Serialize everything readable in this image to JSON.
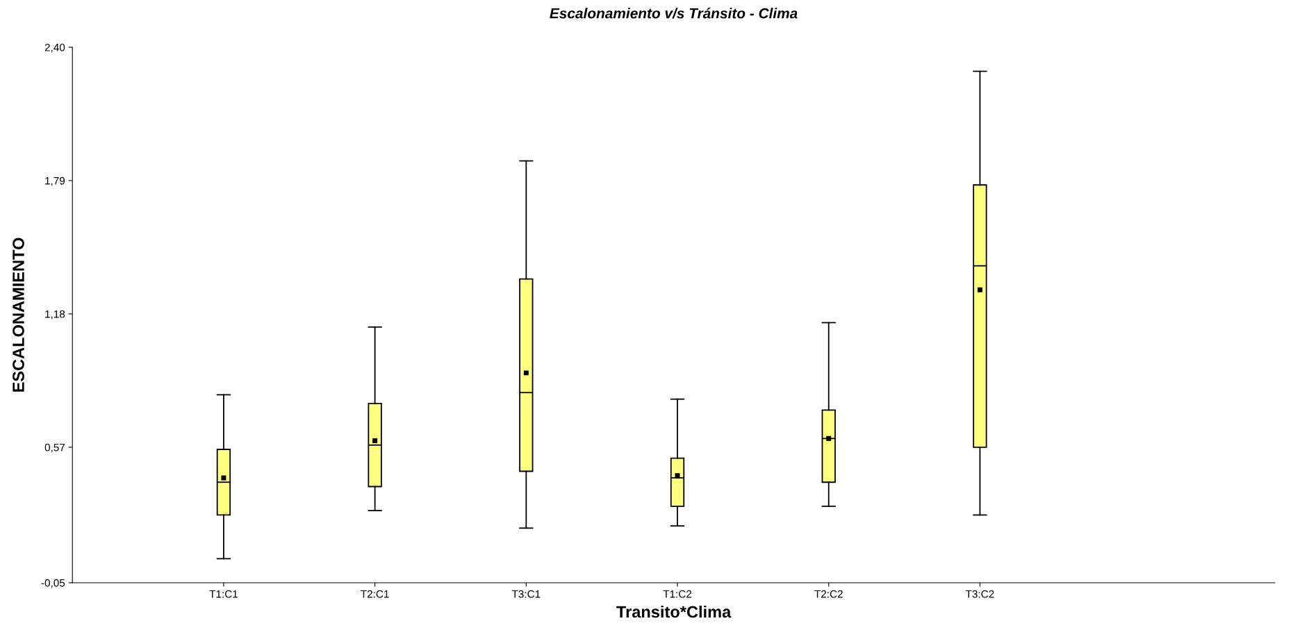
{
  "chart_data": {
    "type": "box",
    "title": "Escalonamiento v/s Tránsito - Clima",
    "xlabel": "Transito*Clima",
    "ylabel": "ESCALONAMIENTO",
    "categories": [
      "T1:C1",
      "T2:C1",
      "T3:C1",
      "T1:C2",
      "T2:C2",
      "T3:C2"
    ],
    "color": "#ffff80",
    "grid": false,
    "marker": "square",
    "ylim": [
      -0.05,
      2.4
    ],
    "yticks": [
      {
        "value": -0.05,
        "label": "-0,05"
      },
      {
        "value": 0.57,
        "label": "0,57"
      },
      {
        "value": 1.18,
        "label": "1,18"
      },
      {
        "value": 1.79,
        "label": "1,79"
      },
      {
        "value": 2.4,
        "label": "2,40"
      }
    ],
    "boxes": [
      {
        "low": 0.06,
        "q1": 0.26,
        "median": 0.41,
        "q3": 0.56,
        "high": 0.81,
        "mean": 0.43
      },
      {
        "low": 0.28,
        "q1": 0.39,
        "median": 0.58,
        "q3": 0.77,
        "high": 1.12,
        "mean": 0.6
      },
      {
        "low": 0.2,
        "q1": 0.46,
        "median": 0.82,
        "q3": 1.34,
        "high": 1.88,
        "mean": 0.91
      },
      {
        "low": 0.21,
        "q1": 0.3,
        "median": 0.43,
        "q3": 0.52,
        "high": 0.79,
        "mean": 0.44
      },
      {
        "low": 0.3,
        "q1": 0.41,
        "median": 0.61,
        "q3": 0.74,
        "high": 1.14,
        "mean": 0.61
      },
      {
        "low": 0.26,
        "q1": 0.57,
        "median": 1.4,
        "q3": 1.77,
        "high": 2.29,
        "mean": 1.29
      }
    ]
  }
}
